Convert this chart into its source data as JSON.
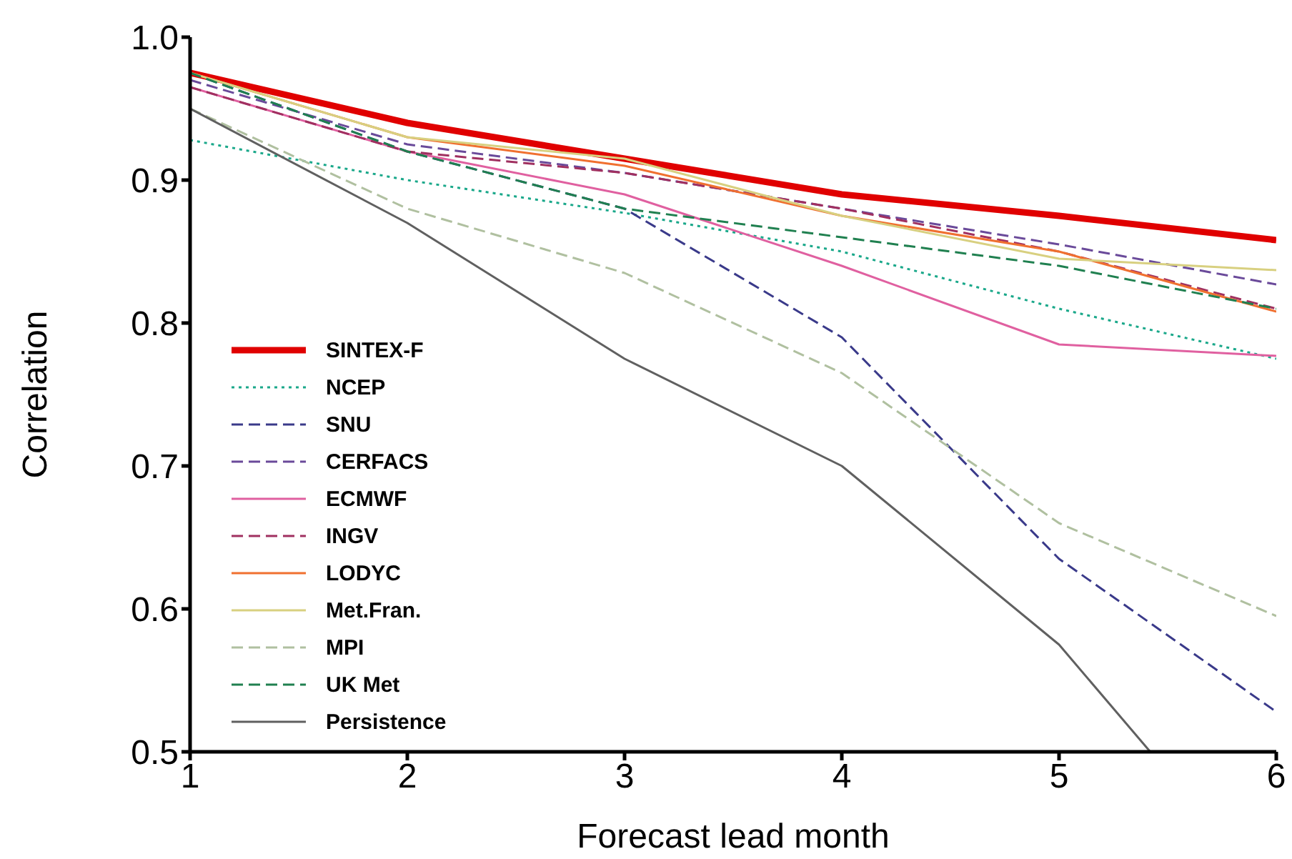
{
  "chart_data": {
    "type": "line",
    "xlabel": "Forecast lead month",
    "ylabel": "Correlation",
    "x": [
      1,
      2,
      3,
      4,
      5,
      6
    ],
    "xlim": [
      1,
      6
    ],
    "xticks": [
      1,
      2,
      3,
      4,
      5,
      6
    ],
    "ylim": [
      0.5,
      1.0
    ],
    "yticks": [
      0.5,
      0.6,
      0.7,
      0.8,
      0.9,
      {
        "value": 1.0,
        "label": "1.0"
      }
    ],
    "grid": false,
    "legend": "bottom left",
    "marker": "none",
    "series": [
      {
        "name": "SINTEX-F",
        "color": "#e00000",
        "line_style": "solid",
        "values": [
          0.975,
          0.94,
          0.915,
          0.89,
          0.875,
          0.858
        ]
      },
      {
        "name": "NCEP",
        "color": "#1aa88a",
        "line_style": "dotted",
        "values": [
          0.928,
          0.9,
          0.877,
          0.85,
          0.81,
          0.775
        ]
      },
      {
        "name": "SNU",
        "color": "#3a3a8a",
        "line_style": "dashed",
        "values": [
          0.975,
          0.92,
          0.88,
          0.79,
          0.635,
          0.528
        ]
      },
      {
        "name": "CERFACS",
        "color": "#6a4a9a",
        "line_style": "dashed",
        "values": [
          0.97,
          0.925,
          0.905,
          0.88,
          0.855,
          0.827
        ]
      },
      {
        "name": "ECMWF",
        "color": "#e060a0",
        "line_style": "solid",
        "values": [
          0.965,
          0.92,
          0.89,
          0.84,
          0.785,
          0.777
        ]
      },
      {
        "name": "INGV",
        "color": "#a03060",
        "line_style": "dashed",
        "values": [
          0.965,
          0.92,
          0.905,
          0.88,
          0.85,
          0.81
        ]
      },
      {
        "name": "LODYC",
        "color": "#f07030",
        "line_style": "solid",
        "values": [
          0.975,
          0.93,
          0.91,
          0.875,
          0.85,
          0.808
        ]
      },
      {
        "name": "Met.Fran.",
        "color": "#d8d080",
        "line_style": "solid",
        "values": [
          0.975,
          0.93,
          0.915,
          0.875,
          0.845,
          0.837
        ]
      },
      {
        "name": "MPI",
        "color": "#b0c0a0",
        "line_style": "dashed",
        "values": [
          0.95,
          0.88,
          0.835,
          0.765,
          0.66,
          0.595
        ]
      },
      {
        "name": "UK Met",
        "color": "#208050",
        "line_style": "dashed",
        "values": [
          0.975,
          0.92,
          0.88,
          0.86,
          0.84,
          0.81
        ]
      },
      {
        "name": "Persistence",
        "color": "#606060",
        "line_style": "solid",
        "x": [
          1,
          2,
          3,
          4,
          5,
          5.42
        ],
        "values": [
          0.95,
          0.87,
          0.775,
          0.7,
          0.575,
          0.5
        ]
      }
    ]
  }
}
